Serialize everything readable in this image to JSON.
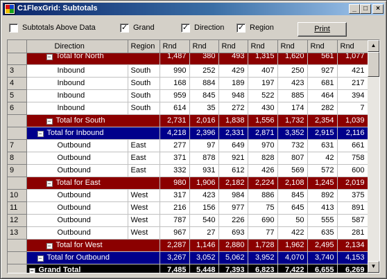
{
  "window": {
    "title": "C1FlexGrid: Subtotals"
  },
  "titlebar_buttons": {
    "minimize": "_",
    "maximize": "□",
    "close": "×"
  },
  "options": {
    "subtotals_above": {
      "label": "Subtotals Above Data",
      "checked": false
    },
    "grand": {
      "label": "Grand",
      "checked": true
    },
    "direction": {
      "label": "Direction",
      "checked": true
    },
    "region": {
      "label": "Region",
      "checked": true
    },
    "print_label": "Print"
  },
  "grid": {
    "headers": [
      "Direction",
      "Region",
      "Rnd",
      "Rnd",
      "Rnd",
      "Rnd",
      "Rnd",
      "Rnd",
      "Rnd"
    ],
    "partial_top": {
      "label": "Total for North",
      "values": [
        "1,487",
        "380",
        "493",
        "1,315",
        "1,620",
        "561",
        "1,077"
      ]
    },
    "rows_a": [
      {
        "num": "3",
        "direction": "Inbound",
        "region": "South",
        "values": [
          "990",
          "252",
          "429",
          "407",
          "250",
          "927",
          "421"
        ]
      },
      {
        "num": "4",
        "direction": "Inbound",
        "region": "South",
        "values": [
          "168",
          "884",
          "189",
          "197",
          "423",
          "681",
          "217"
        ]
      },
      {
        "num": "5",
        "direction": "Inbound",
        "region": "South",
        "values": [
          "959",
          "845",
          "948",
          "522",
          "885",
          "464",
          "394"
        ]
      },
      {
        "num": "6",
        "direction": "Inbound",
        "region": "South",
        "values": [
          "614",
          "35",
          "272",
          "430",
          "174",
          "282",
          "7"
        ]
      }
    ],
    "total_south": {
      "label": "Total for South",
      "values": [
        "2,731",
        "2,016",
        "1,838",
        "1,556",
        "1,732",
        "2,354",
        "1,039"
      ]
    },
    "total_inbound": {
      "label": "Total for Inbound",
      "values": [
        "4,218",
        "2,396",
        "2,331",
        "2,871",
        "3,352",
        "2,915",
        "2,116"
      ]
    },
    "rows_b": [
      {
        "num": "7",
        "direction": "Outbound",
        "region": "East",
        "values": [
          "277",
          "97",
          "649",
          "970",
          "732",
          "631",
          "661"
        ]
      },
      {
        "num": "8",
        "direction": "Outbound",
        "region": "East",
        "values": [
          "371",
          "878",
          "921",
          "828",
          "807",
          "42",
          "758"
        ]
      },
      {
        "num": "9",
        "direction": "Outbound",
        "region": "East",
        "values": [
          "332",
          "931",
          "612",
          "426",
          "569",
          "572",
          "600"
        ]
      }
    ],
    "total_east": {
      "label": "Total for East",
      "values": [
        "980",
        "1,906",
        "2,182",
        "2,224",
        "2,108",
        "1,245",
        "2,019"
      ]
    },
    "rows_c": [
      {
        "num": "10",
        "direction": "Outbound",
        "region": "West",
        "values": [
          "317",
          "423",
          "984",
          "886",
          "845",
          "892",
          "375"
        ]
      },
      {
        "num": "11",
        "direction": "Outbound",
        "region": "West",
        "values": [
          "216",
          "156",
          "977",
          "75",
          "645",
          "413",
          "891"
        ]
      },
      {
        "num": "12",
        "direction": "Outbound",
        "region": "West",
        "values": [
          "787",
          "540",
          "226",
          "690",
          "50",
          "555",
          "587"
        ]
      },
      {
        "num": "13",
        "direction": "Outbound",
        "region": "West",
        "values": [
          "967",
          "27",
          "693",
          "77",
          "422",
          "635",
          "281"
        ]
      }
    ],
    "total_west": {
      "label": "Total for West",
      "values": [
        "2,287",
        "1,146",
        "2,880",
        "1,728",
        "1,962",
        "2,495",
        "2,134"
      ]
    },
    "total_outbound": {
      "label": "Total for Outbound",
      "values": [
        "3,267",
        "3,052",
        "5,062",
        "3,952",
        "4,070",
        "3,740",
        "4,153"
      ]
    },
    "grand_total": {
      "label": "Grand Total",
      "values": [
        "7,485",
        "5,448",
        "7,393",
        "6,823",
        "7,422",
        "6,655",
        "6,269"
      ]
    }
  },
  "colors": {
    "region_subtotal": "#8b0000",
    "direction_subtotal": "#00008b",
    "grand_total": "#000000"
  }
}
